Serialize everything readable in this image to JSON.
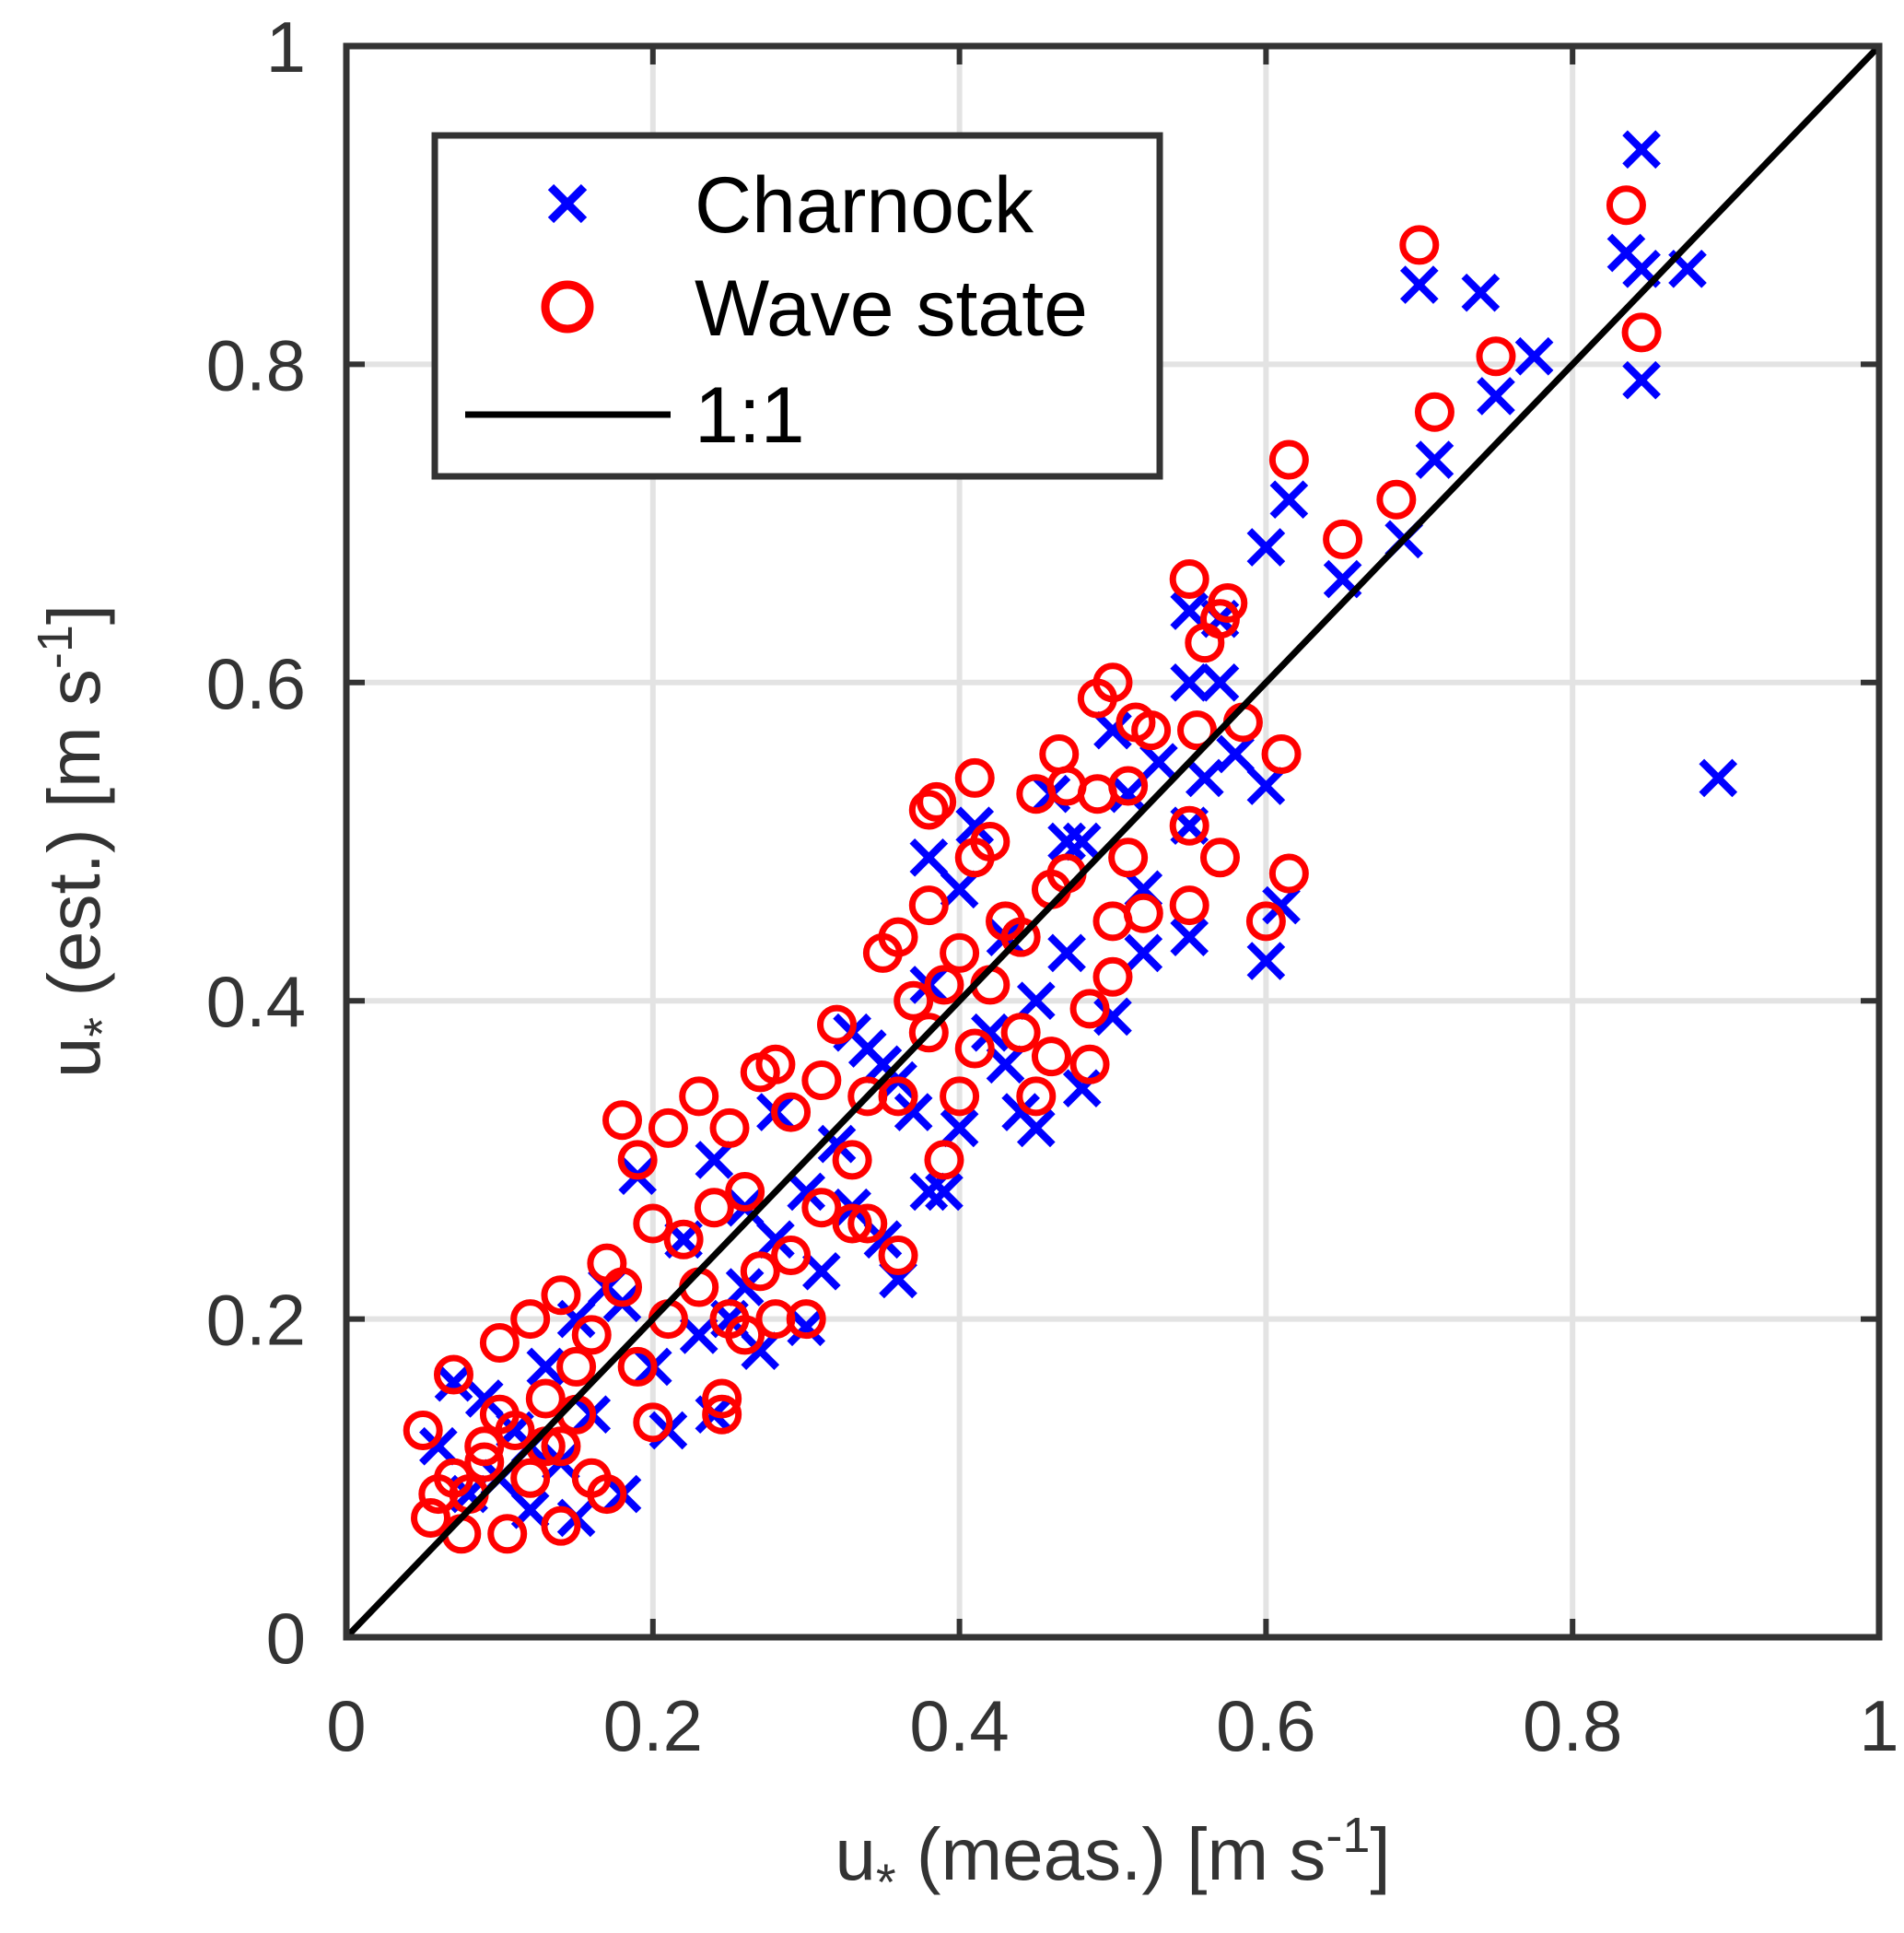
{
  "chart_data": {
    "type": "scatter",
    "title": "",
    "xlabel": {
      "base": "u",
      "sub": "*",
      "mid": " (meas.) [m s",
      "sup": "-1",
      "end": "]"
    },
    "ylabel": {
      "base": "u",
      "sub": "*",
      "mid": " (est.) [m s",
      "sup": "-1",
      "end": "]"
    },
    "xlim": [
      0,
      1
    ],
    "ylim": [
      0,
      1
    ],
    "grid": true,
    "xticks": [
      "0",
      "0.2",
      "0.4",
      "0.6",
      "0.8",
      "1"
    ],
    "yticks": [
      "0",
      "0.2",
      "0.4",
      "0.6",
      "0.8",
      "1"
    ],
    "legend": {
      "placement": "top-left",
      "entries": [
        "Charnock",
        "Wave state",
        "1:1"
      ]
    },
    "colors": {
      "charnock": "#0000ff",
      "wave": "#ff0000",
      "line": "#000000"
    },
    "series": [
      {
        "name": "Charnock",
        "marker": "x",
        "points": [
          [
            0.845,
            0.935
          ],
          [
            0.835,
            0.87
          ],
          [
            0.845,
            0.86
          ],
          [
            0.875,
            0.86
          ],
          [
            0.845,
            0.79
          ],
          [
            0.895,
            0.54
          ],
          [
            0.7,
            0.85
          ],
          [
            0.74,
            0.845
          ],
          [
            0.775,
            0.805
          ],
          [
            0.75,
            0.78
          ],
          [
            0.71,
            0.74
          ],
          [
            0.69,
            0.69
          ],
          [
            0.65,
            0.665
          ],
          [
            0.615,
            0.715
          ],
          [
            0.6,
            0.685
          ],
          [
            0.57,
            0.64
          ],
          [
            0.55,
            0.645
          ],
          [
            0.55,
            0.6
          ],
          [
            0.57,
            0.6
          ],
          [
            0.58,
            0.555
          ],
          [
            0.6,
            0.535
          ],
          [
            0.56,
            0.54
          ],
          [
            0.55,
            0.51
          ],
          [
            0.53,
            0.55
          ],
          [
            0.55,
            0.44
          ],
          [
            0.61,
            0.46
          ],
          [
            0.6,
            0.425
          ],
          [
            0.52,
            0.43
          ],
          [
            0.5,
            0.39
          ],
          [
            0.48,
            0.345
          ],
          [
            0.45,
            0.32
          ],
          [
            0.44,
            0.33
          ],
          [
            0.47,
            0.43
          ],
          [
            0.47,
            0.5
          ],
          [
            0.46,
            0.53
          ],
          [
            0.5,
            0.57
          ],
          [
            0.52,
            0.47
          ],
          [
            0.43,
            0.36
          ],
          [
            0.4,
            0.32
          ],
          [
            0.39,
            0.28
          ],
          [
            0.38,
            0.28
          ],
          [
            0.36,
            0.225
          ],
          [
            0.35,
            0.25
          ],
          [
            0.33,
            0.27
          ],
          [
            0.3,
            0.195
          ],
          [
            0.27,
            0.18
          ],
          [
            0.24,
            0.14
          ],
          [
            0.21,
            0.13
          ],
          [
            0.18,
            0.09
          ],
          [
            0.15,
            0.075
          ],
          [
            0.12,
            0.08
          ],
          [
            0.1,
            0.1
          ],
          [
            0.08,
            0.09
          ],
          [
            0.06,
            0.12
          ],
          [
            0.07,
            0.16
          ],
          [
            0.09,
            0.15
          ],
          [
            0.11,
            0.13
          ],
          [
            0.13,
            0.17
          ],
          [
            0.15,
            0.2
          ],
          [
            0.17,
            0.22
          ],
          [
            0.19,
            0.29
          ],
          [
            0.22,
            0.25
          ],
          [
            0.24,
            0.3
          ],
          [
            0.25,
            0.2
          ],
          [
            0.26,
            0.27
          ],
          [
            0.28,
            0.33
          ],
          [
            0.3,
            0.28
          ],
          [
            0.32,
            0.31
          ],
          [
            0.34,
            0.37
          ],
          [
            0.36,
            0.35
          ],
          [
            0.38,
            0.49
          ],
          [
            0.4,
            0.47
          ],
          [
            0.41,
            0.51
          ],
          [
            0.43,
            0.44
          ],
          [
            0.45,
            0.4
          ],
          [
            0.38,
            0.41
          ],
          [
            0.35,
            0.36
          ],
          [
            0.33,
            0.38
          ],
          [
            0.28,
            0.25
          ],
          [
            0.23,
            0.19
          ],
          [
            0.2,
            0.17
          ],
          [
            0.16,
            0.14
          ],
          [
            0.14,
            0.11
          ],
          [
            0.12,
            0.12
          ],
          [
            0.18,
            0.21
          ],
          [
            0.26,
            0.22
          ],
          [
            0.31,
            0.23
          ],
          [
            0.37,
            0.33
          ],
          [
            0.42,
            0.38
          ],
          [
            0.48,
            0.5
          ],
          [
            0.51,
            0.53
          ]
        ]
      },
      {
        "name": "Wave state",
        "marker": "o",
        "points": [
          [
            0.835,
            0.9
          ],
          [
            0.7,
            0.875
          ],
          [
            0.75,
            0.805
          ],
          [
            0.845,
            0.82
          ],
          [
            0.71,
            0.77
          ],
          [
            0.685,
            0.715
          ],
          [
            0.615,
            0.74
          ],
          [
            0.65,
            0.69
          ],
          [
            0.55,
            0.665
          ],
          [
            0.575,
            0.65
          ],
          [
            0.56,
            0.625
          ],
          [
            0.57,
            0.64
          ],
          [
            0.5,
            0.6
          ],
          [
            0.49,
            0.59
          ],
          [
            0.515,
            0.575
          ],
          [
            0.525,
            0.57
          ],
          [
            0.555,
            0.57
          ],
          [
            0.585,
            0.575
          ],
          [
            0.61,
            0.555
          ],
          [
            0.465,
            0.555
          ],
          [
            0.41,
            0.54
          ],
          [
            0.38,
            0.52
          ],
          [
            0.385,
            0.525
          ],
          [
            0.45,
            0.53
          ],
          [
            0.47,
            0.535
          ],
          [
            0.49,
            0.53
          ],
          [
            0.51,
            0.535
          ],
          [
            0.55,
            0.51
          ],
          [
            0.57,
            0.49
          ],
          [
            0.615,
            0.48
          ],
          [
            0.6,
            0.45
          ],
          [
            0.51,
            0.49
          ],
          [
            0.55,
            0.46
          ],
          [
            0.52,
            0.455
          ],
          [
            0.5,
            0.45
          ],
          [
            0.5,
            0.415
          ],
          [
            0.485,
            0.395
          ],
          [
            0.485,
            0.36
          ],
          [
            0.45,
            0.34
          ],
          [
            0.46,
            0.365
          ],
          [
            0.4,
            0.34
          ],
          [
            0.39,
            0.3
          ],
          [
            0.36,
            0.24
          ],
          [
            0.34,
            0.26
          ],
          [
            0.33,
            0.26
          ],
          [
            0.3,
            0.2
          ],
          [
            0.245,
            0.14
          ],
          [
            0.245,
            0.15
          ],
          [
            0.2,
            0.135
          ],
          [
            0.14,
            0.07
          ],
          [
            0.105,
            0.065
          ],
          [
            0.075,
            0.065
          ],
          [
            0.055,
            0.075
          ],
          [
            0.05,
            0.13
          ],
          [
            0.07,
            0.165
          ],
          [
            0.1,
            0.185
          ],
          [
            0.12,
            0.2
          ],
          [
            0.14,
            0.215
          ],
          [
            0.17,
            0.235
          ],
          [
            0.18,
            0.325
          ],
          [
            0.19,
            0.3
          ],
          [
            0.21,
            0.32
          ],
          [
            0.23,
            0.34
          ],
          [
            0.25,
            0.32
          ],
          [
            0.27,
            0.355
          ],
          [
            0.28,
            0.36
          ],
          [
            0.32,
            0.385
          ],
          [
            0.35,
            0.43
          ],
          [
            0.36,
            0.44
          ],
          [
            0.38,
            0.46
          ],
          [
            0.41,
            0.49
          ],
          [
            0.42,
            0.5
          ],
          [
            0.43,
            0.45
          ],
          [
            0.44,
            0.44
          ],
          [
            0.46,
            0.47
          ],
          [
            0.47,
            0.48
          ],
          [
            0.4,
            0.43
          ],
          [
            0.37,
            0.4
          ],
          [
            0.39,
            0.41
          ],
          [
            0.34,
            0.34
          ],
          [
            0.31,
            0.35
          ],
          [
            0.29,
            0.33
          ],
          [
            0.26,
            0.28
          ],
          [
            0.24,
            0.27
          ],
          [
            0.22,
            0.25
          ],
          [
            0.2,
            0.26
          ],
          [
            0.18,
            0.22
          ],
          [
            0.16,
            0.19
          ],
          [
            0.15,
            0.17
          ],
          [
            0.13,
            0.15
          ],
          [
            0.11,
            0.13
          ],
          [
            0.09,
            0.11
          ],
          [
            0.08,
            0.09
          ],
          [
            0.12,
            0.1
          ],
          [
            0.14,
            0.12
          ],
          [
            0.16,
            0.1
          ],
          [
            0.17,
            0.09
          ],
          [
            0.25,
            0.2
          ],
          [
            0.27,
            0.23
          ],
          [
            0.29,
            0.24
          ],
          [
            0.31,
            0.27
          ],
          [
            0.33,
            0.3
          ],
          [
            0.26,
            0.19
          ],
          [
            0.28,
            0.2
          ],
          [
            0.23,
            0.22
          ],
          [
            0.21,
            0.2
          ],
          [
            0.19,
            0.17
          ],
          [
            0.15,
            0.14
          ],
          [
            0.13,
            0.12
          ],
          [
            0.1,
            0.14
          ],
          [
            0.09,
            0.12
          ],
          [
            0.07,
            0.1
          ],
          [
            0.06,
            0.09
          ],
          [
            0.36,
            0.34
          ],
          [
            0.38,
            0.38
          ],
          [
            0.42,
            0.41
          ],
          [
            0.44,
            0.38
          ],
          [
            0.41,
            0.37
          ]
        ]
      }
    ],
    "reference_line": {
      "name": "1:1",
      "from": [
        0,
        0
      ],
      "to": [
        1,
        1
      ]
    }
  }
}
